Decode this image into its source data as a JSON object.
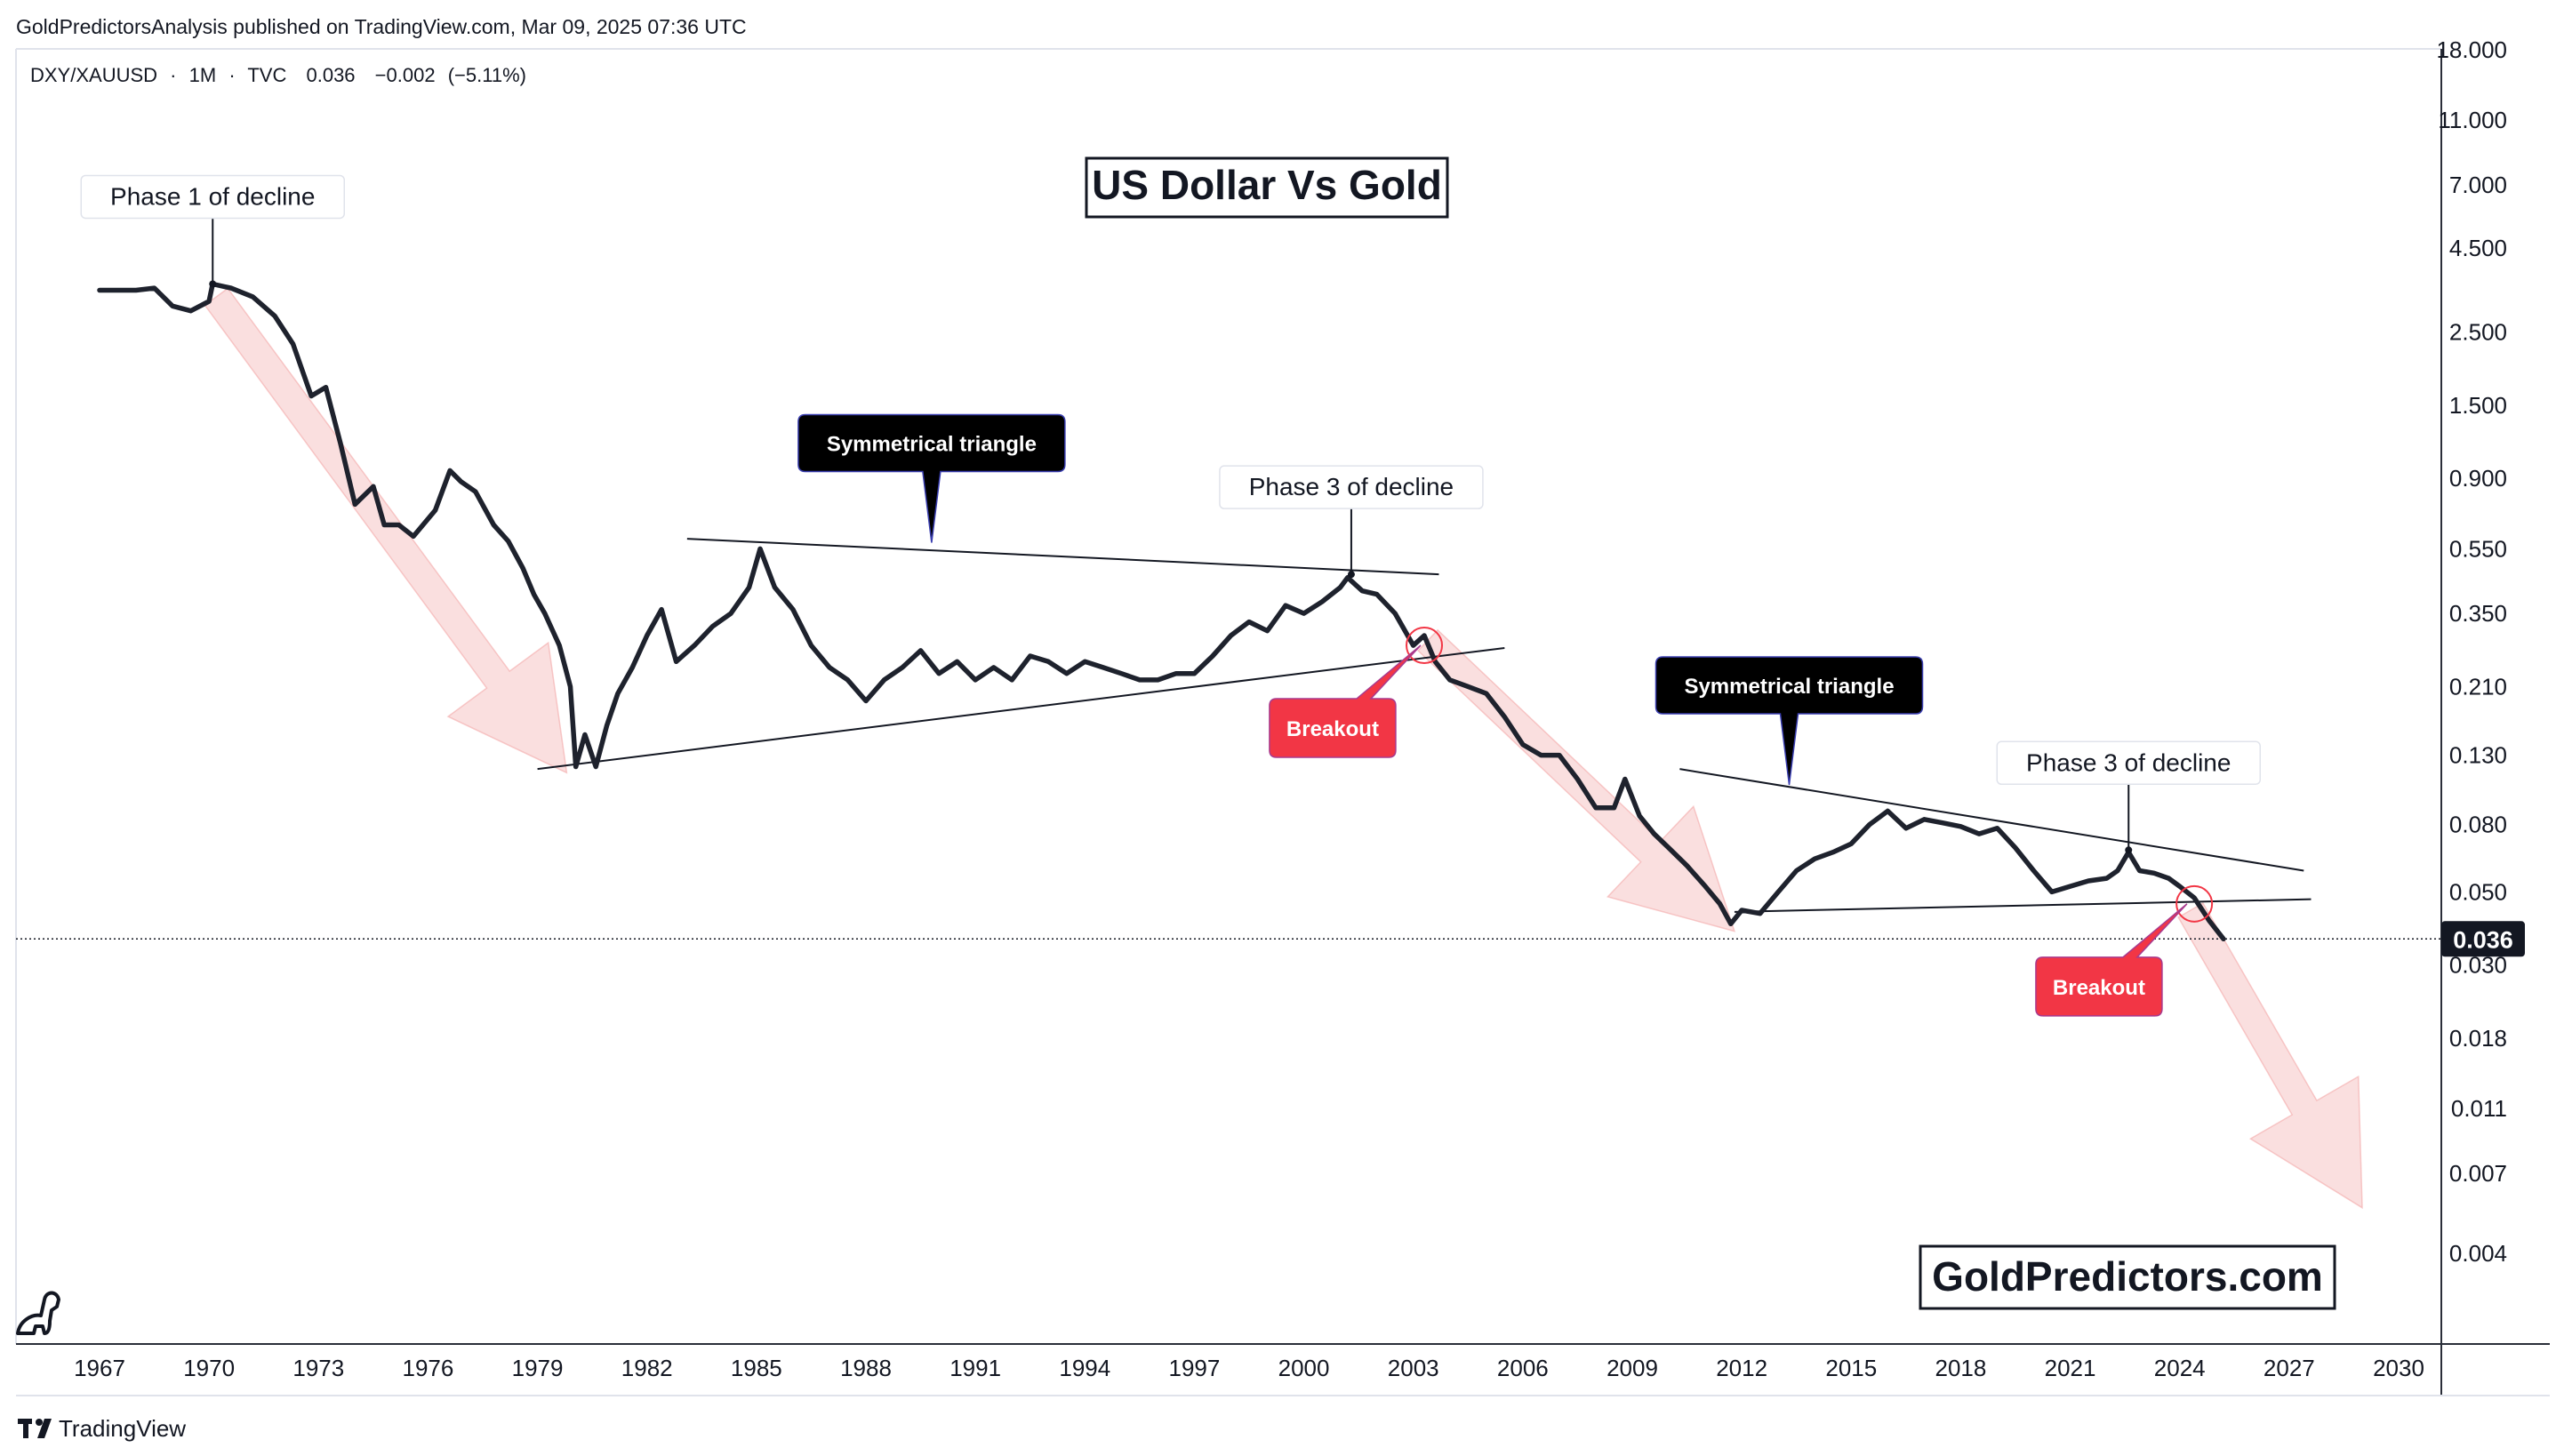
{
  "header": {
    "published_line": "GoldPredictorsAnalysis published on TradingView.com, Mar 09, 2025 07:36 UTC"
  },
  "legend": {
    "symbol": "DXY/XAUUSD",
    "interval": "1M",
    "source": "TVC",
    "separator": "·",
    "last": "0.036",
    "change": "−0.002",
    "change_pct": "(−5.11%)"
  },
  "footer": {
    "brand": "TradingView"
  },
  "colors": {
    "price_line": "#1e222d",
    "arrow_fill": "#f7c9c9",
    "breakout_fill": "#f23645",
    "callout_dark": "#000000",
    "axis_text": "#131722",
    "current_price_bg": "#131722"
  },
  "chart_data": {
    "type": "line",
    "title": "US Dollar Vs Gold",
    "watermark": "GoldPredictors.com",
    "y_scale": "log",
    "current_price": "0.036",
    "x_ticks": [
      "1967",
      "1970",
      "1973",
      "1976",
      "1979",
      "1982",
      "1985",
      "1988",
      "1991",
      "1994",
      "1997",
      "2000",
      "2003",
      "2006",
      "2009",
      "2012",
      "2015",
      "2018",
      "2021",
      "2024",
      "2027",
      "2030"
    ],
    "y_ticks": [
      "18.000",
      "11.000",
      "7.000",
      "4.500",
      "2.500",
      "1.500",
      "0.900",
      "0.550",
      "0.350",
      "0.210",
      "0.130",
      "0.080",
      "0.050",
      "0.030",
      "0.018",
      "0.011",
      "0.007",
      "0.004"
    ],
    "series": [
      {
        "points": [
          [
            1967.0,
            3.35
          ],
          [
            1968.0,
            3.35
          ],
          [
            1968.5,
            3.4
          ],
          [
            1969.0,
            3.0
          ],
          [
            1969.5,
            2.9
          ],
          [
            1970.0,
            3.1
          ],
          [
            1970.1,
            3.5
          ],
          [
            1970.6,
            3.4
          ],
          [
            1971.2,
            3.2
          ],
          [
            1971.8,
            2.8
          ],
          [
            1972.3,
            2.3
          ],
          [
            1972.8,
            1.6
          ],
          [
            1973.2,
            1.7
          ],
          [
            1973.6,
            1.15
          ],
          [
            1974.0,
            0.75
          ],
          [
            1974.5,
            0.85
          ],
          [
            1974.8,
            0.65
          ],
          [
            1975.2,
            0.65
          ],
          [
            1975.6,
            0.6
          ],
          [
            1976.2,
            0.72
          ],
          [
            1976.6,
            0.95
          ],
          [
            1976.9,
            0.88
          ],
          [
            1977.3,
            0.82
          ],
          [
            1977.8,
            0.65
          ],
          [
            1978.2,
            0.58
          ],
          [
            1978.6,
            0.48
          ],
          [
            1978.9,
            0.4
          ],
          [
            1979.2,
            0.35
          ],
          [
            1979.6,
            0.28
          ],
          [
            1979.9,
            0.21
          ],
          [
            1980.05,
            0.12
          ],
          [
            1980.3,
            0.15
          ],
          [
            1980.6,
            0.12
          ],
          [
            1980.9,
            0.16
          ],
          [
            1981.2,
            0.2
          ],
          [
            1981.6,
            0.24
          ],
          [
            1982.0,
            0.3
          ],
          [
            1982.4,
            0.36
          ],
          [
            1982.8,
            0.25
          ],
          [
            1983.3,
            0.28
          ],
          [
            1983.8,
            0.32
          ],
          [
            1984.3,
            0.35
          ],
          [
            1984.8,
            0.42
          ],
          [
            1985.1,
            0.55
          ],
          [
            1985.5,
            0.42
          ],
          [
            1986.0,
            0.36
          ],
          [
            1986.5,
            0.28
          ],
          [
            1987.0,
            0.24
          ],
          [
            1987.5,
            0.22
          ],
          [
            1988.0,
            0.19
          ],
          [
            1988.5,
            0.22
          ],
          [
            1989.0,
            0.24
          ],
          [
            1989.5,
            0.27
          ],
          [
            1990.0,
            0.23
          ],
          [
            1990.5,
            0.25
          ],
          [
            1991.0,
            0.22
          ],
          [
            1991.5,
            0.24
          ],
          [
            1992.0,
            0.22
          ],
          [
            1992.5,
            0.26
          ],
          [
            1993.0,
            0.25
          ],
          [
            1993.5,
            0.23
          ],
          [
            1994.0,
            0.25
          ],
          [
            1994.5,
            0.24
          ],
          [
            1995.0,
            0.23
          ],
          [
            1995.5,
            0.22
          ],
          [
            1996.0,
            0.22
          ],
          [
            1996.5,
            0.23
          ],
          [
            1997.0,
            0.23
          ],
          [
            1997.5,
            0.26
          ],
          [
            1998.0,
            0.3
          ],
          [
            1998.5,
            0.33
          ],
          [
            1999.0,
            0.31
          ],
          [
            1999.5,
            0.37
          ],
          [
            2000.0,
            0.35
          ],
          [
            2000.5,
            0.38
          ],
          [
            2001.0,
            0.42
          ],
          [
            2001.2,
            0.45
          ],
          [
            2001.6,
            0.41
          ],
          [
            2002.0,
            0.4
          ],
          [
            2002.5,
            0.35
          ],
          [
            2003.0,
            0.28
          ],
          [
            2003.3,
            0.3
          ],
          [
            2003.6,
            0.25
          ],
          [
            2004.0,
            0.22
          ],
          [
            2004.5,
            0.21
          ],
          [
            2005.0,
            0.2
          ],
          [
            2005.5,
            0.17
          ],
          [
            2006.0,
            0.14
          ],
          [
            2006.5,
            0.13
          ],
          [
            2007.0,
            0.13
          ],
          [
            2007.5,
            0.11
          ],
          [
            2008.0,
            0.09
          ],
          [
            2008.5,
            0.09
          ],
          [
            2008.8,
            0.11
          ],
          [
            2009.2,
            0.085
          ],
          [
            2009.6,
            0.075
          ],
          [
            2010.0,
            0.068
          ],
          [
            2010.5,
            0.06
          ],
          [
            2011.0,
            0.052
          ],
          [
            2011.4,
            0.046
          ],
          [
            2011.7,
            0.04
          ],
          [
            2012.0,
            0.044
          ],
          [
            2012.5,
            0.043
          ],
          [
            2013.0,
            0.05
          ],
          [
            2013.5,
            0.058
          ],
          [
            2014.0,
            0.063
          ],
          [
            2014.5,
            0.066
          ],
          [
            2015.0,
            0.07
          ],
          [
            2015.5,
            0.08
          ],
          [
            2016.0,
            0.088
          ],
          [
            2016.5,
            0.078
          ],
          [
            2017.0,
            0.083
          ],
          [
            2017.5,
            0.081
          ],
          [
            2018.0,
            0.079
          ],
          [
            2018.5,
            0.075
          ],
          [
            2019.0,
            0.078
          ],
          [
            2019.5,
            0.068
          ],
          [
            2020.0,
            0.058
          ],
          [
            2020.5,
            0.05
          ],
          [
            2021.0,
            0.052
          ],
          [
            2021.5,
            0.054
          ],
          [
            2022.0,
            0.055
          ],
          [
            2022.3,
            0.058
          ],
          [
            2022.6,
            0.066
          ],
          [
            2022.9,
            0.058
          ],
          [
            2023.3,
            0.057
          ],
          [
            2023.7,
            0.055
          ],
          [
            2024.0,
            0.052
          ],
          [
            2024.4,
            0.048
          ],
          [
            2024.8,
            0.041
          ],
          [
            2025.2,
            0.036
          ]
        ]
      }
    ],
    "annotations": [
      {
        "type": "label-light",
        "text": "Phase 1 of decline",
        "x": 1970.1,
        "y": 3.5
      },
      {
        "type": "label-dark",
        "text": "Symmetrical triangle",
        "x": 1989.8,
        "y": 0.56
      },
      {
        "type": "label-light",
        "text": "Phase 3 of decline",
        "x": 2001.3,
        "y": 0.46
      },
      {
        "type": "label-red",
        "text": "Breakout",
        "x": 2003.2,
        "y": 0.28
      },
      {
        "type": "label-dark",
        "text": "Symmetrical triangle",
        "x": 2013.3,
        "y": 0.103
      },
      {
        "type": "label-light",
        "text": "Phase 3 of decline",
        "x": 2022.6,
        "y": 0.067
      },
      {
        "type": "label-red",
        "text": "Breakout",
        "x": 2024.2,
        "y": 0.046
      }
    ],
    "trendlines": [
      {
        "from": [
          1979.0,
          0.118
        ],
        "to": [
          2005.5,
          0.275
        ]
      },
      {
        "from": [
          1983.1,
          0.59
        ],
        "to": [
          2003.7,
          0.46
        ]
      },
      {
        "from": [
          2011.8,
          0.0435
        ],
        "to": [
          2027.6,
          0.0475
        ]
      },
      {
        "from": [
          2010.3,
          0.118
        ],
        "to": [
          2027.4,
          0.058
        ]
      }
    ],
    "arrows": [
      {
        "from": [
          1970.2,
          3.2
        ],
        "to": [
          1979.8,
          0.115
        ]
      },
      {
        "from": [
          2003.4,
          0.29
        ],
        "to": [
          2011.8,
          0.038
        ]
      },
      {
        "from": [
          2024.3,
          0.044
        ],
        "to": [
          2029.0,
          0.0055
        ]
      }
    ],
    "breakout_circles": [
      {
        "x": 2003.3,
        "y": 0.28
      },
      {
        "x": 2024.4,
        "y": 0.046
      }
    ]
  }
}
